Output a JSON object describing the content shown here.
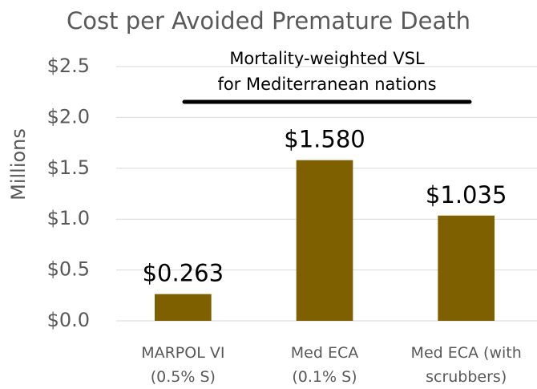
{
  "chart_data": {
    "type": "bar",
    "title": "Cost per Avoided Premature Death",
    "y_label": "Millions",
    "annotation": [
      "Mortality-weighted VSL",
      "for Mediterranean nations"
    ],
    "categories": [
      [
        "MARPOL VI",
        "(0.5% S)"
      ],
      [
        "Med ECA",
        "(0.1% S)"
      ],
      [
        "Med ECA (with",
        "scrubbers)"
      ]
    ],
    "values": [
      0.263,
      1.58,
      1.035
    ],
    "value_labels": [
      "$0.263",
      "$1.580",
      "$1.035"
    ],
    "color": "#7f6000",
    "ylim": [
      0,
      2.5
    ],
    "yticks": [
      {
        "value": 0,
        "label": "$0.0"
      },
      {
        "value": 0.5,
        "label": "$0.5"
      },
      {
        "value": 1,
        "label": "$1.0"
      },
      {
        "value": 1.5,
        "label": "$1.5"
      },
      {
        "value": 2,
        "label": "$2.0"
      },
      {
        "value": 2.5,
        "label": "$2.5"
      }
    ],
    "grid": true
  }
}
